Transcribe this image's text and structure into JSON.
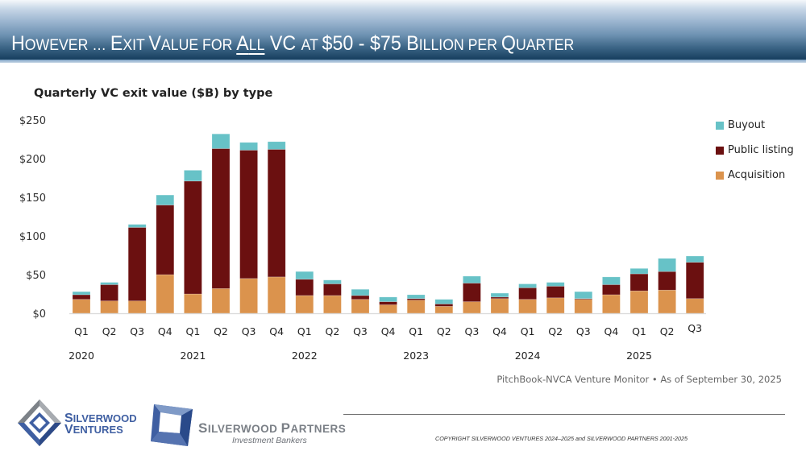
{
  "header": {
    "title_parts": [
      {
        "text": "H",
        "cls": "big"
      },
      {
        "text": "OWEVER … ",
        "cls": "small"
      },
      {
        "text": "E",
        "cls": "big"
      },
      {
        "text": "XIT ",
        "cls": "small"
      },
      {
        "text": "V",
        "cls": "big"
      },
      {
        "text": "ALUE FOR ",
        "cls": "small"
      },
      {
        "text": "A",
        "cls": "big",
        "u": true
      },
      {
        "text": "LL",
        "cls": "small",
        "u": true
      },
      {
        "text": " VC ",
        "cls": "big"
      },
      {
        "text": "AT ",
        "cls": "small"
      },
      {
        "text": "$50 - $75 ",
        "cls": "big"
      },
      {
        "text": "B",
        "cls": "big"
      },
      {
        "text": "ILLION PER ",
        "cls": "small"
      },
      {
        "text": "Q",
        "cls": "big"
      },
      {
        "text": "UARTER",
        "cls": "small"
      }
    ],
    "title_full": "However … Exit Value for All VC at $50 - $75 Billion per Quarter"
  },
  "chart_data": {
    "type": "bar",
    "stacked": true,
    "title": "Quarterly VC exit value ($B) by type",
    "xlabel": "",
    "ylabel": "",
    "ylim": [
      0,
      250
    ],
    "yticks": [
      0,
      50,
      100,
      150,
      200,
      250
    ],
    "ytick_labels": [
      "$0",
      "$50",
      "$100",
      "$150",
      "$200",
      "$250"
    ],
    "grid": false,
    "legend_position": "right",
    "categories": [
      "Q1",
      "Q2",
      "Q3",
      "Q4",
      "Q1",
      "Q2",
      "Q3",
      "Q4",
      "Q1",
      "Q2",
      "Q3",
      "Q4",
      "Q1",
      "Q2",
      "Q3",
      "Q4",
      "Q1",
      "Q2",
      "Q3",
      "Q4",
      "Q1",
      "Q2",
      "Q3"
    ],
    "years": [
      {
        "label": "2020",
        "index": 0
      },
      {
        "label": "2021",
        "index": 4
      },
      {
        "label": "2022",
        "index": 8
      },
      {
        "label": "2023",
        "index": 12
      },
      {
        "label": "2024",
        "index": 16
      },
      {
        "label": "2025",
        "index": 20
      }
    ],
    "series": [
      {
        "name": "Acquisition",
        "color": "#DB934D",
        "values": [
          18,
          16,
          16,
          50,
          25,
          32,
          45,
          47,
          23,
          23,
          18,
          11,
          17,
          9,
          15,
          19,
          18,
          20,
          18,
          24,
          29,
          30,
          19
        ]
      },
      {
        "name": "Public listing",
        "color": "#6B1010",
        "values": [
          6,
          21,
          95,
          90,
          146,
          181,
          166,
          165,
          21,
          15,
          5,
          4,
          2,
          3,
          24,
          2,
          15,
          15,
          1,
          13,
          22,
          24,
          47
        ]
      },
      {
        "name": "Buyout",
        "color": "#67C2C7",
        "values": [
          4,
          3,
          4,
          13,
          14,
          19,
          10,
          10,
          10,
          5,
          8,
          6,
          5,
          6,
          9,
          5,
          5,
          5,
          9,
          10,
          7,
          17,
          8
        ]
      }
    ],
    "legend": [
      "Buyout",
      "Public listing",
      "Acquisition"
    ]
  },
  "source": "PitchBook-NVCA Venture Monitor  •  As of September 30, 2025",
  "footer": {
    "copyright": "COPYRIGHT SILVERWOOD VENTURES 2024–2025 and SILVERWOOD PARTNERS 2001-2025",
    "logo1_line1_cap": "S",
    "logo1_line1": "ILVERWOOD",
    "logo1_line2_cap": "V",
    "logo1_line2": "ENTURES",
    "logo2_cap1": "S",
    "logo2_text1": "ILVERWOOD ",
    "logo2_cap2": "P",
    "logo2_text2": "ARTNERS",
    "logo2_tagline": "Investment Bankers"
  }
}
